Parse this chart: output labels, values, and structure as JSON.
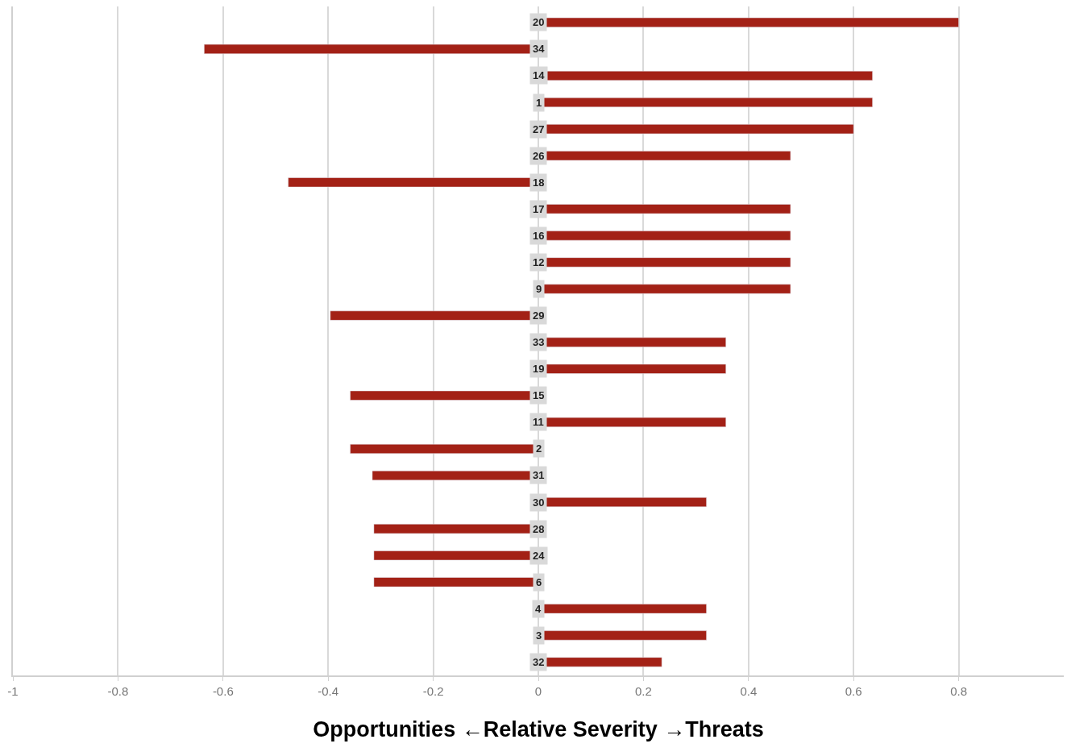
{
  "chart_data": {
    "type": "bar",
    "orientation": "horizontal",
    "xlabel": "Opportunities ←Relative Severity →Threats",
    "categories": [
      "20",
      "34",
      "14",
      "1",
      "27",
      "26",
      "18",
      "17",
      "16",
      "12",
      "9",
      "29",
      "33",
      "19",
      "15",
      "11",
      "2",
      "31",
      "30",
      "28",
      "24",
      "6",
      "4",
      "3",
      "32"
    ],
    "values": [
      0.8,
      -0.636,
      0.636,
      0.636,
      0.6,
      0.48,
      -0.476,
      0.48,
      0.48,
      0.48,
      0.48,
      -0.396,
      0.357,
      0.357,
      -0.358,
      0.357,
      -0.358,
      -0.316,
      0.32,
      -0.313,
      -0.313,
      -0.313,
      0.32,
      0.32,
      0.235
    ],
    "color": "#a32116",
    "xlim": [
      -1,
      1
    ],
    "xticks": [
      -1,
      -0.8,
      -0.6,
      -0.4,
      -0.2,
      0,
      0.2,
      0.4,
      0.6,
      0.8
    ],
    "grid": "x"
  }
}
